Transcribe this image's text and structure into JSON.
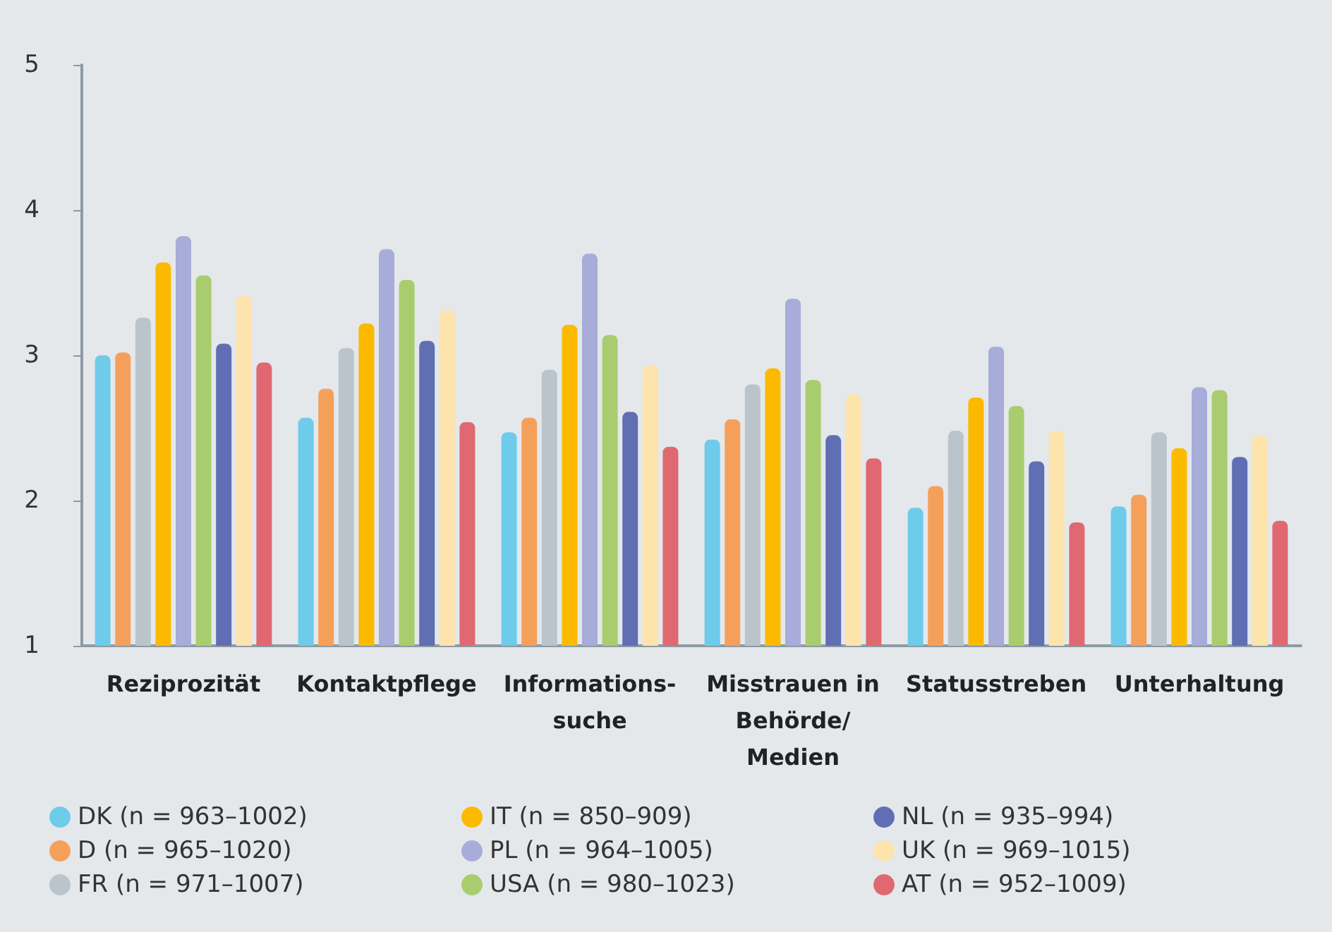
{
  "chart_data": {
    "type": "bar",
    "categories": [
      "Reziprozität",
      "Kontaktpflege",
      "Informations-\nsuche",
      "Misstrauen in\nBehörde/\nMedien",
      "Statusstreben",
      "Unterhaltung"
    ],
    "series": [
      {
        "name": "DK (n = 963–1002)",
        "color": "#6ecbea",
        "values": [
          3.0,
          2.57,
          2.47,
          2.42,
          1.95,
          1.96
        ]
      },
      {
        "name": "D (n = 965–1020)",
        "color": "#f5a05a",
        "values": [
          3.02,
          2.77,
          2.57,
          2.56,
          2.1,
          2.04
        ]
      },
      {
        "name": "FR (n = 971–1007)",
        "color": "#bcc4cb",
        "values": [
          3.26,
          3.05,
          2.9,
          2.8,
          2.48,
          2.47
        ]
      },
      {
        "name": "IT (n = 850–909)",
        "color": "#fbba00",
        "values": [
          3.64,
          3.22,
          3.21,
          2.91,
          2.71,
          2.36
        ]
      },
      {
        "name": "PL (n = 964–1005)",
        "color": "#a7acd9",
        "values": [
          3.82,
          3.73,
          3.7,
          3.39,
          3.06,
          2.78
        ]
      },
      {
        "name": "USA (n = 980–1023)",
        "color": "#a9cc6e",
        "values": [
          3.55,
          3.52,
          3.14,
          2.83,
          2.65,
          2.76
        ]
      },
      {
        "name": "NL (n = 935–994)",
        "color": "#606eb4",
        "values": [
          3.08,
          3.1,
          2.61,
          2.45,
          2.27,
          2.3
        ]
      },
      {
        "name": "UK (n = 969–1015)",
        "color": "#fde3ac",
        "values": [
          3.41,
          3.31,
          2.93,
          2.73,
          2.48,
          2.45
        ]
      },
      {
        "name": "AT (n = 952–1009)",
        "color": "#e06870",
        "values": [
          2.95,
          2.54,
          2.37,
          2.29,
          1.85,
          1.86
        ]
      }
    ],
    "ylim": [
      1,
      5
    ],
    "yticks": [
      1,
      2,
      3,
      4,
      5
    ],
    "grid": false,
    "legend": "bottom"
  }
}
